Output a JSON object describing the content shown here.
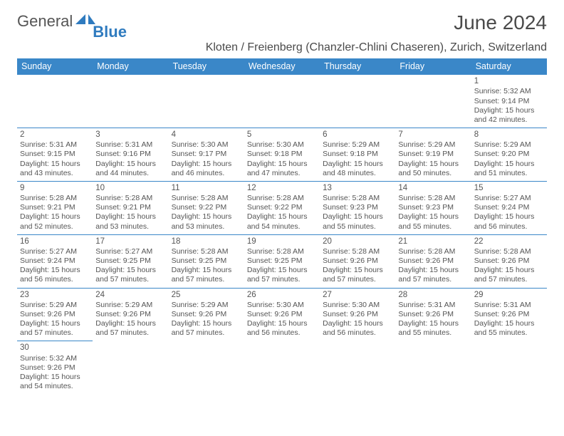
{
  "brand": {
    "part1": "General",
    "part2": "Blue"
  },
  "title": "June 2024",
  "location": "Kloten / Freienberg (Chanzler-Chlini Chaseren), Zurich, Switzerland",
  "header_bg": "#3a87c8",
  "header_fg": "#ffffff",
  "border_color": "#3a87c8",
  "text_color": "#555555",
  "font_family": "Arial",
  "day_headers": [
    "Sunday",
    "Monday",
    "Tuesday",
    "Wednesday",
    "Thursday",
    "Friday",
    "Saturday"
  ],
  "weeks": [
    [
      null,
      null,
      null,
      null,
      null,
      null,
      {
        "n": "1",
        "sr": "5:32 AM",
        "ss": "9:14 PM",
        "dl": "15 hours and 42 minutes."
      }
    ],
    [
      {
        "n": "2",
        "sr": "5:31 AM",
        "ss": "9:15 PM",
        "dl": "15 hours and 43 minutes."
      },
      {
        "n": "3",
        "sr": "5:31 AM",
        "ss": "9:16 PM",
        "dl": "15 hours and 44 minutes."
      },
      {
        "n": "4",
        "sr": "5:30 AM",
        "ss": "9:17 PM",
        "dl": "15 hours and 46 minutes."
      },
      {
        "n": "5",
        "sr": "5:30 AM",
        "ss": "9:18 PM",
        "dl": "15 hours and 47 minutes."
      },
      {
        "n": "6",
        "sr": "5:29 AM",
        "ss": "9:18 PM",
        "dl": "15 hours and 48 minutes."
      },
      {
        "n": "7",
        "sr": "5:29 AM",
        "ss": "9:19 PM",
        "dl": "15 hours and 50 minutes."
      },
      {
        "n": "8",
        "sr": "5:29 AM",
        "ss": "9:20 PM",
        "dl": "15 hours and 51 minutes."
      }
    ],
    [
      {
        "n": "9",
        "sr": "5:28 AM",
        "ss": "9:21 PM",
        "dl": "15 hours and 52 minutes."
      },
      {
        "n": "10",
        "sr": "5:28 AM",
        "ss": "9:21 PM",
        "dl": "15 hours and 53 minutes."
      },
      {
        "n": "11",
        "sr": "5:28 AM",
        "ss": "9:22 PM",
        "dl": "15 hours and 53 minutes."
      },
      {
        "n": "12",
        "sr": "5:28 AM",
        "ss": "9:22 PM",
        "dl": "15 hours and 54 minutes."
      },
      {
        "n": "13",
        "sr": "5:28 AM",
        "ss": "9:23 PM",
        "dl": "15 hours and 55 minutes."
      },
      {
        "n": "14",
        "sr": "5:28 AM",
        "ss": "9:23 PM",
        "dl": "15 hours and 55 minutes."
      },
      {
        "n": "15",
        "sr": "5:27 AM",
        "ss": "9:24 PM",
        "dl": "15 hours and 56 minutes."
      }
    ],
    [
      {
        "n": "16",
        "sr": "5:27 AM",
        "ss": "9:24 PM",
        "dl": "15 hours and 56 minutes."
      },
      {
        "n": "17",
        "sr": "5:27 AM",
        "ss": "9:25 PM",
        "dl": "15 hours and 57 minutes."
      },
      {
        "n": "18",
        "sr": "5:28 AM",
        "ss": "9:25 PM",
        "dl": "15 hours and 57 minutes."
      },
      {
        "n": "19",
        "sr": "5:28 AM",
        "ss": "9:25 PM",
        "dl": "15 hours and 57 minutes."
      },
      {
        "n": "20",
        "sr": "5:28 AM",
        "ss": "9:26 PM",
        "dl": "15 hours and 57 minutes."
      },
      {
        "n": "21",
        "sr": "5:28 AM",
        "ss": "9:26 PM",
        "dl": "15 hours and 57 minutes."
      },
      {
        "n": "22",
        "sr": "5:28 AM",
        "ss": "9:26 PM",
        "dl": "15 hours and 57 minutes."
      }
    ],
    [
      {
        "n": "23",
        "sr": "5:29 AM",
        "ss": "9:26 PM",
        "dl": "15 hours and 57 minutes."
      },
      {
        "n": "24",
        "sr": "5:29 AM",
        "ss": "9:26 PM",
        "dl": "15 hours and 57 minutes."
      },
      {
        "n": "25",
        "sr": "5:29 AM",
        "ss": "9:26 PM",
        "dl": "15 hours and 57 minutes."
      },
      {
        "n": "26",
        "sr": "5:30 AM",
        "ss": "9:26 PM",
        "dl": "15 hours and 56 minutes."
      },
      {
        "n": "27",
        "sr": "5:30 AM",
        "ss": "9:26 PM",
        "dl": "15 hours and 56 minutes."
      },
      {
        "n": "28",
        "sr": "5:31 AM",
        "ss": "9:26 PM",
        "dl": "15 hours and 55 minutes."
      },
      {
        "n": "29",
        "sr": "5:31 AM",
        "ss": "9:26 PM",
        "dl": "15 hours and 55 minutes."
      }
    ],
    [
      {
        "n": "30",
        "sr": "5:32 AM",
        "ss": "9:26 PM",
        "dl": "15 hours and 54 minutes."
      },
      null,
      null,
      null,
      null,
      null,
      null
    ]
  ],
  "labels": {
    "sunrise": "Sunrise:",
    "sunset": "Sunset:",
    "daylight": "Daylight:"
  }
}
